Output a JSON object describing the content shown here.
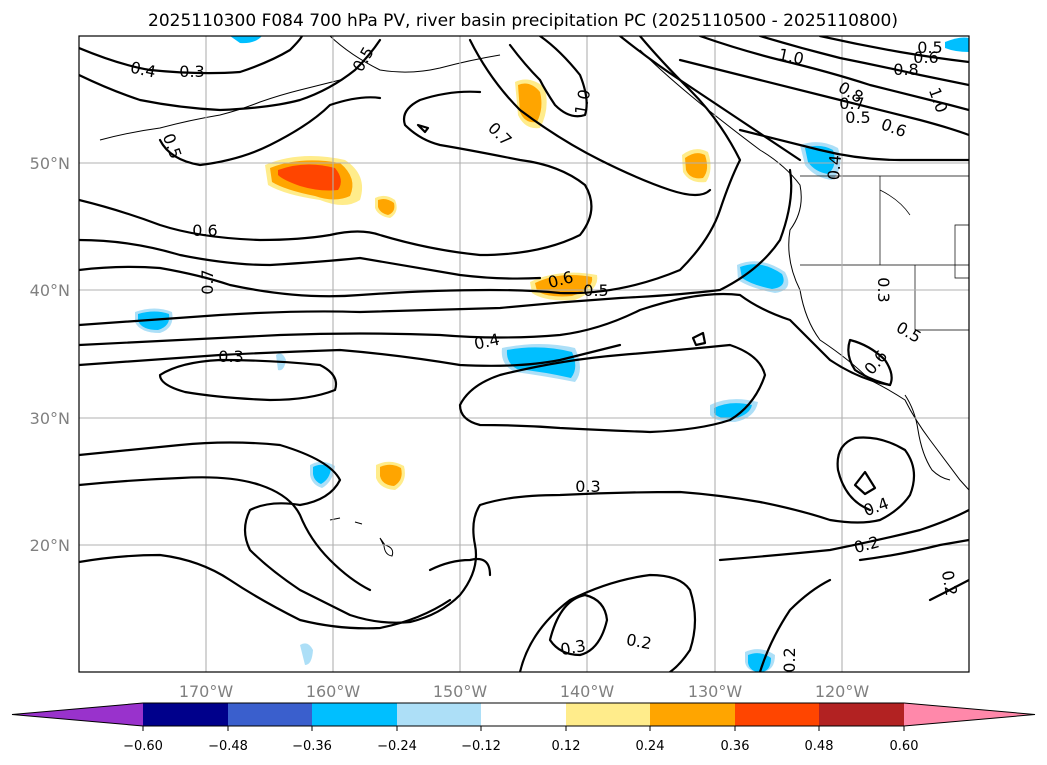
{
  "title": "2025110300 F084 700 hPa PV, river basin precipitation PC (2025110500 - 2025110800)",
  "axes": {
    "lon_labels": [
      "170°W",
      "160°W",
      "150°W",
      "140°W",
      "130°W",
      "120°W"
    ],
    "lat_labels": [
      "50°N",
      "40°N",
      "30°N",
      "20°N"
    ]
  },
  "colorbar": {
    "tick_labels": [
      "−0.60",
      "−0.48",
      "−0.36",
      "−0.24",
      "−0.12",
      "0.12",
      "0.24",
      "0.36",
      "0.48",
      "0.60"
    ],
    "colors": [
      "#9932CC",
      "#00008B",
      "#3A5FCD",
      "#00BFFF",
      "#ADDFF7",
      "#FFFFFF",
      "#FFEC8B",
      "#FFA500",
      "#FF4500",
      "#B22222",
      "#FF88AA"
    ]
  },
  "contour_labels": [
    {
      "text": "0.4"
    },
    {
      "text": "0.3"
    },
    {
      "text": "0.5"
    },
    {
      "text": "0.6"
    },
    {
      "text": "0.7"
    },
    {
      "text": "0.5"
    },
    {
      "text": "0.7"
    },
    {
      "text": "1.0"
    },
    {
      "text": "1.0"
    },
    {
      "text": "0.5"
    },
    {
      "text": "0.6"
    },
    {
      "text": "0.8"
    },
    {
      "text": "0.8"
    },
    {
      "text": "0.7"
    },
    {
      "text": "0.5"
    },
    {
      "text": "0.6"
    },
    {
      "text": "1.0"
    },
    {
      "text": "0.4"
    },
    {
      "text": "0.6"
    },
    {
      "text": "0.5"
    },
    {
      "text": "0.4"
    },
    {
      "text": "0.3"
    },
    {
      "text": "0.3"
    },
    {
      "text": "0.5"
    },
    {
      "text": "0.6"
    },
    {
      "text": "0.3"
    },
    {
      "text": "0.4"
    },
    {
      "text": "0.2"
    },
    {
      "text": "0.2"
    },
    {
      "text": "0.3"
    },
    {
      "text": "0.2"
    },
    {
      "text": "0.2"
    }
  ]
}
